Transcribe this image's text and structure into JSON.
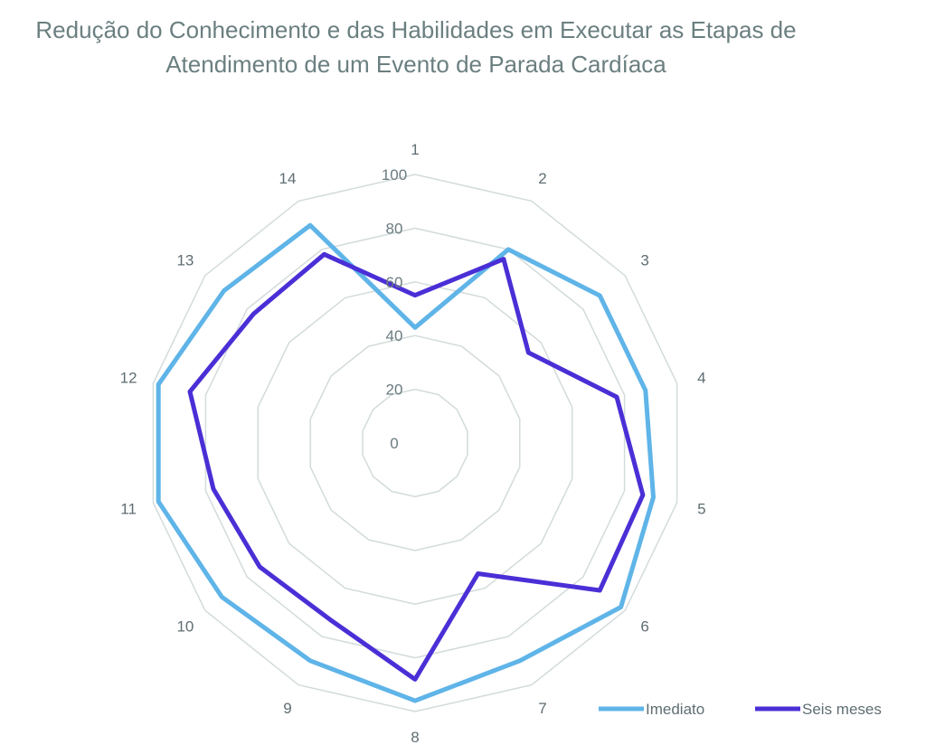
{
  "chart_data": {
    "type": "radar",
    "title_lines": [
      "Redução do Conhecimento e das Habilidades em Executar as Etapas de",
      "Atendimento de um Evento de Parada Cardíaca"
    ],
    "categories": [
      "1",
      "2",
      "3",
      "4",
      "5",
      "6",
      "7",
      "8",
      "9",
      "10",
      "11",
      "12",
      "13",
      "14"
    ],
    "r_ticks": [
      "0",
      "20",
      "40",
      "60",
      "80",
      "100"
    ],
    "rlim": [
      0,
      100
    ],
    "grid": true,
    "legend_position": "bottom-right",
    "series": [
      {
        "name": "Imediato",
        "color": "#5fb4e8",
        "values": [
          43,
          80,
          88,
          88,
          91,
          98,
          90,
          96,
          90,
          92,
          98,
          98,
          91,
          90
        ]
      },
      {
        "name": "Seis meses",
        "color": "#4a2fd6",
        "values": [
          55,
          76,
          54,
          77,
          87,
          88,
          54,
          88,
          73,
          74,
          77,
          86,
          77,
          78
        ]
      }
    ]
  }
}
